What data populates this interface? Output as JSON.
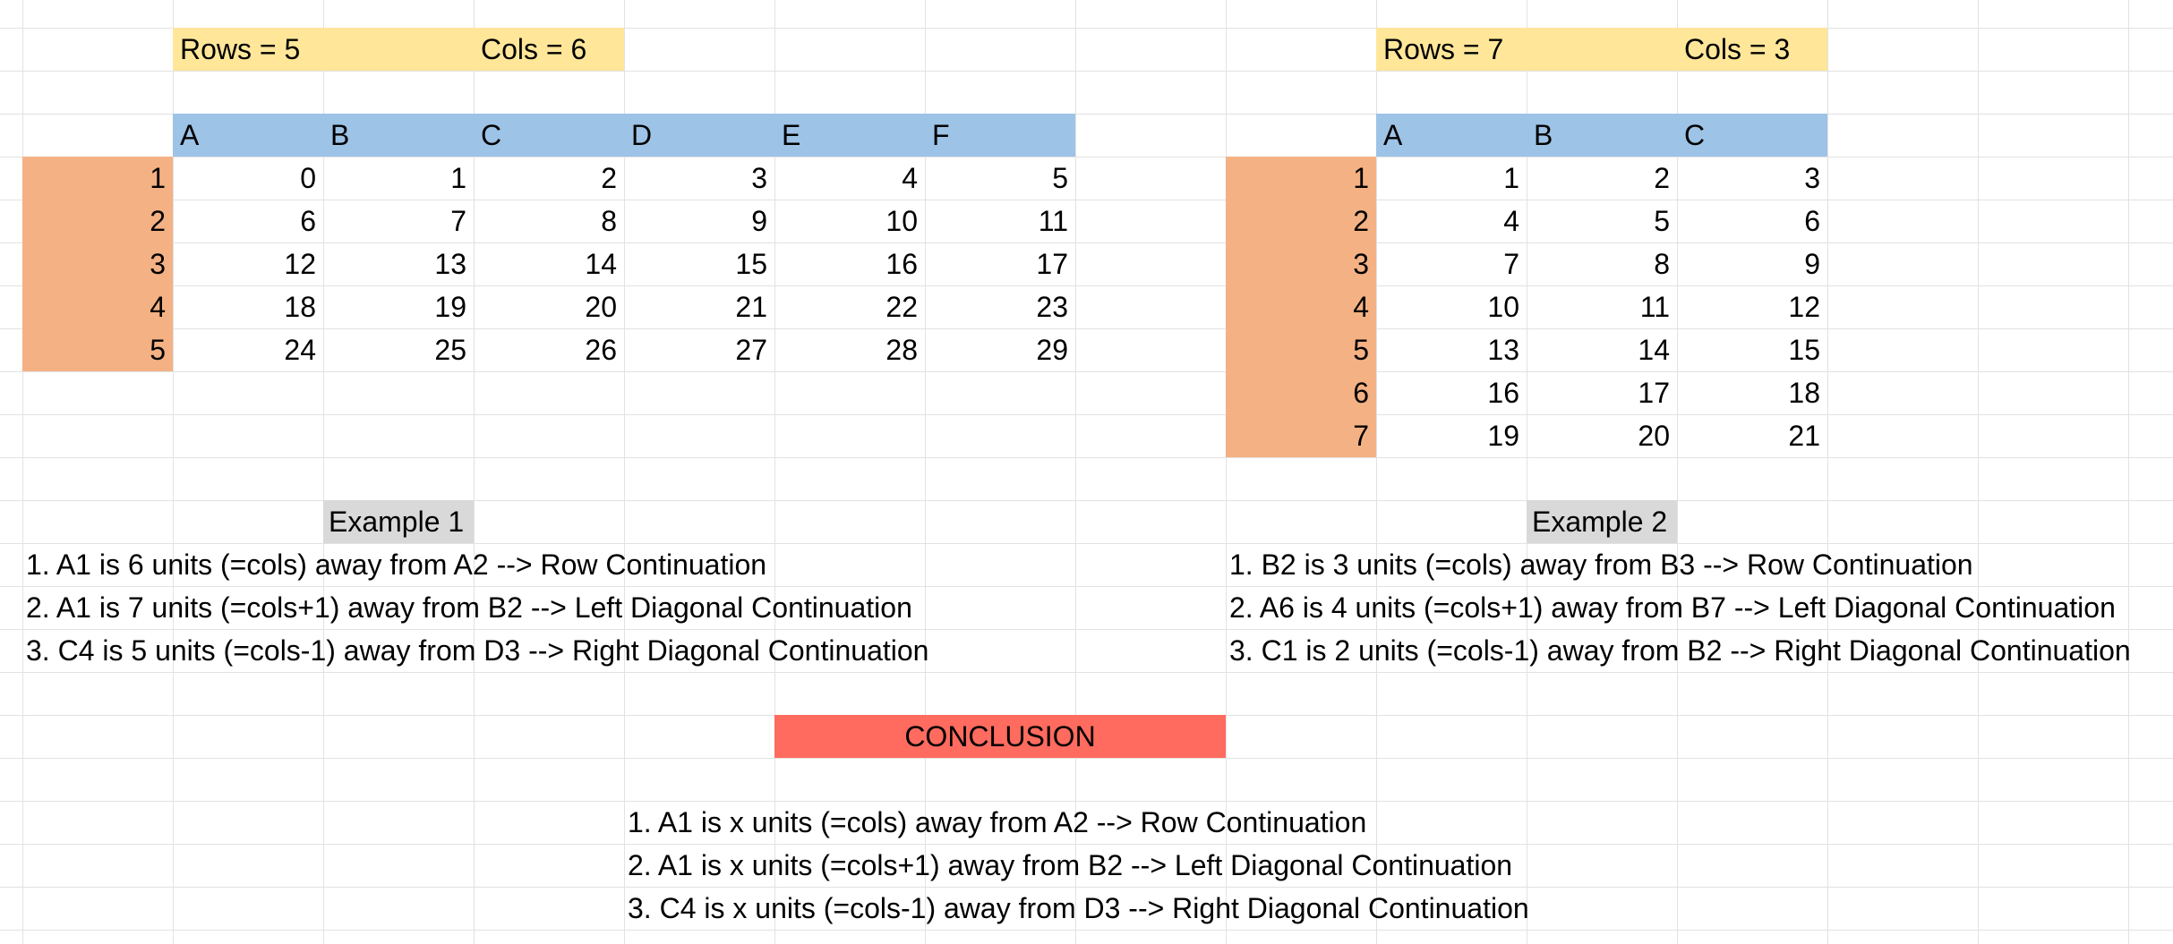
{
  "example1": {
    "rows_label": "Rows = 5",
    "cols_label": "Cols = 6",
    "col_headers": [
      "A",
      "B",
      "C",
      "D",
      "E",
      "F"
    ],
    "row_headers": [
      "1",
      "2",
      "3",
      "4",
      "5"
    ],
    "cells": [
      [
        "0",
        "1",
        "2",
        "3",
        "4",
        "5"
      ],
      [
        "6",
        "7",
        "8",
        "9",
        "10",
        "11"
      ],
      [
        "12",
        "13",
        "14",
        "15",
        "16",
        "17"
      ],
      [
        "18",
        "19",
        "20",
        "21",
        "22",
        "23"
      ],
      [
        "24",
        "25",
        "26",
        "27",
        "28",
        "29"
      ]
    ],
    "title": "Example 1",
    "notes": [
      "1. A1 is 6 units (=cols) away from A2 --> Row Continuation",
      "2. A1 is 7 units (=cols+1) away from B2 --> Left Diagonal Continuation",
      "3. C4 is 5 units (=cols-1) away from D3 --> Right Diagonal Continuation"
    ]
  },
  "example2": {
    "rows_label": "Rows = 7",
    "cols_label": "Cols = 3",
    "col_headers": [
      "A",
      "B",
      "C"
    ],
    "row_headers": [
      "1",
      "2",
      "3",
      "4",
      "5",
      "6",
      "7"
    ],
    "cells": [
      [
        "1",
        "2",
        "3"
      ],
      [
        "4",
        "5",
        "6"
      ],
      [
        "7",
        "8",
        "9"
      ],
      [
        "10",
        "11",
        "12"
      ],
      [
        "13",
        "14",
        "15"
      ],
      [
        "16",
        "17",
        "18"
      ],
      [
        "19",
        "20",
        "21"
      ]
    ],
    "title": "Example 2",
    "notes": [
      "1. B2 is 3 units (=cols) away from B3 --> Row Continuation",
      "2. A6 is 4 units (=cols+1) away from B7 --> Left Diagonal Continuation",
      "3. C1 is 2 units (=cols-1) away from B2 --> Right Diagonal Continuation"
    ]
  },
  "conclusion": {
    "title": "CONCLUSION",
    "notes": [
      "1. A1 is x units (=cols) away from A2 --> Row Continuation",
      "2. A1 is x units (=cols+1) away from B2 --> Left Diagonal Continuation",
      "3. C4 is x units (=cols-1) away from D3 --> Right Diagonal Continuation"
    ]
  },
  "colors": {
    "header_blue": "#9dc3e6",
    "row_orange": "#f4b183",
    "label_yellow": "#ffe699",
    "title_gray": "#d9d9d9",
    "conclusion_red": "#ff6b5e",
    "gridline": "#e2e2e2"
  }
}
